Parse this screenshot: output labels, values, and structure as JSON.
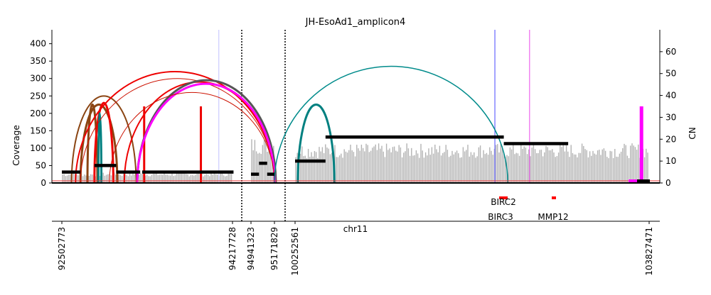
{
  "chart_data": {
    "type": "line",
    "title": "JH-EsoAd1_amplicon4",
    "ylabel_left": "Coverage",
    "ylabel_right": "CN",
    "xlabel": "chr11",
    "ylim_coverage": [
      0,
      440
    ],
    "yticks_coverage": [
      "0",
      "50",
      "100",
      "150",
      "200",
      "250",
      "300",
      "350",
      "400"
    ],
    "ylim_cn": [
      0,
      70
    ],
    "yticks_cn": [
      "0",
      "10",
      "20",
      "30",
      "40",
      "50",
      "60"
    ],
    "grid": false,
    "x_ticks": [
      "92502773",
      "94217728",
      "94941323",
      "95171829",
      "100252561",
      "103827471"
    ],
    "genes": [
      {
        "name": "BIRC2",
        "color": "#ff0000"
      },
      {
        "name": "BIRC3",
        "color": "#ff0000"
      },
      {
        "name": "MMP12",
        "color": "#ff0000"
      }
    ],
    "segments_cn": [
      {
        "x0": 92502773,
        "x1": 92690000,
        "cn": 5
      },
      {
        "x0": 92830000,
        "x1": 93050000,
        "cn": 8
      },
      {
        "x0": 93050000,
        "x1": 93290000,
        "cn": 5
      },
      {
        "x0": 93310000,
        "x1": 94260000,
        "cn": 5
      },
      {
        "x0": 94941323,
        "x1": 95020000,
        "cn": 4
      },
      {
        "x0": 95020000,
        "x1": 95100000,
        "cn": 9
      },
      {
        "x0": 95100000,
        "x1": 95171829,
        "cn": 4
      },
      {
        "x0": 100252561,
        "x1": 100560000,
        "cn": 10
      },
      {
        "x0": 100560000,
        "x1": 102360000,
        "cn": 21
      },
      {
        "x0": 102360000,
        "x1": 103010000,
        "cn": 18
      }
    ],
    "coverage_regions": [
      {
        "x0": 92502773,
        "x1": 94217728,
        "level": 25
      },
      {
        "x0": 94941323,
        "x1": 95171829,
        "level": 110
      },
      {
        "x0": 100252561,
        "x1": 103827471,
        "level": 95
      }
    ],
    "arcs": [
      {
        "x0": 92600000,
        "x1": 93250000,
        "height": 250,
        "color": "#8b4513",
        "width": 2
      },
      {
        "x0": 92690000,
        "x1": 93060000,
        "height": 225,
        "color": "#8b4513",
        "width": 3
      },
      {
        "x0": 92760000,
        "x1": 92860000,
        "height": 225,
        "color": "#8b4513",
        "width": 3
      },
      {
        "x0": 92830000,
        "x1": 93020000,
        "height": 230,
        "color": "#ee0000",
        "width": 3
      },
      {
        "x0": 92870000,
        "x1": 92900000,
        "height": 200,
        "color": "#008080",
        "width": 3
      },
      {
        "x0": 92640000,
        "x1": 95171829,
        "height": 320,
        "color": "#ee0000",
        "width": 2
      },
      {
        "x0": 92690000,
        "x1": 95171829,
        "height": 300,
        "color": "#cc1100",
        "width": 1
      },
      {
        "x0": 93130000,
        "x1": 95171829,
        "height": 290,
        "color": "#ee0000",
        "width": 2
      },
      {
        "x0": 93260000,
        "x1": 95280000,
        "height": 295,
        "color": "#555555",
        "width": 3
      },
      {
        "x0": 93260000,
        "x1": 95190000,
        "height": 285,
        "color": "#ff00ff",
        "width": 3
      },
      {
        "x0": 92980000,
        "x1": 95171829,
        "height": 260,
        "color": "#cc1100",
        "width": 1
      },
      {
        "x0": 100280000,
        "x1": 100650000,
        "height": 225,
        "color": "#008080",
        "width": 3
      },
      {
        "x0": 95171829,
        "x1": 102400000,
        "height": 335,
        "color": "#008b8b",
        "width": 1.5
      }
    ],
    "spikes": [
      {
        "x": 93330000,
        "height": 220,
        "color": "#ee0000"
      },
      {
        "x": 93900000,
        "height": 220,
        "color": "#ee0000"
      },
      {
        "x": 103750000,
        "height": 35,
        "color": "#ff00ff",
        "units": "cn"
      }
    ],
    "vlines": [
      {
        "x": 94600000,
        "style": "dotted",
        "color": "#000000"
      },
      {
        "x": 96000000,
        "style": "dotted",
        "color": "#000000"
      },
      {
        "x": 102270000,
        "style": "solid",
        "color": "#6666ff"
      },
      {
        "x": 102620000,
        "style": "solid",
        "color": "#ee66ee"
      },
      {
        "x": 94080000,
        "style": "solid",
        "color": "#ccccff"
      }
    ]
  }
}
